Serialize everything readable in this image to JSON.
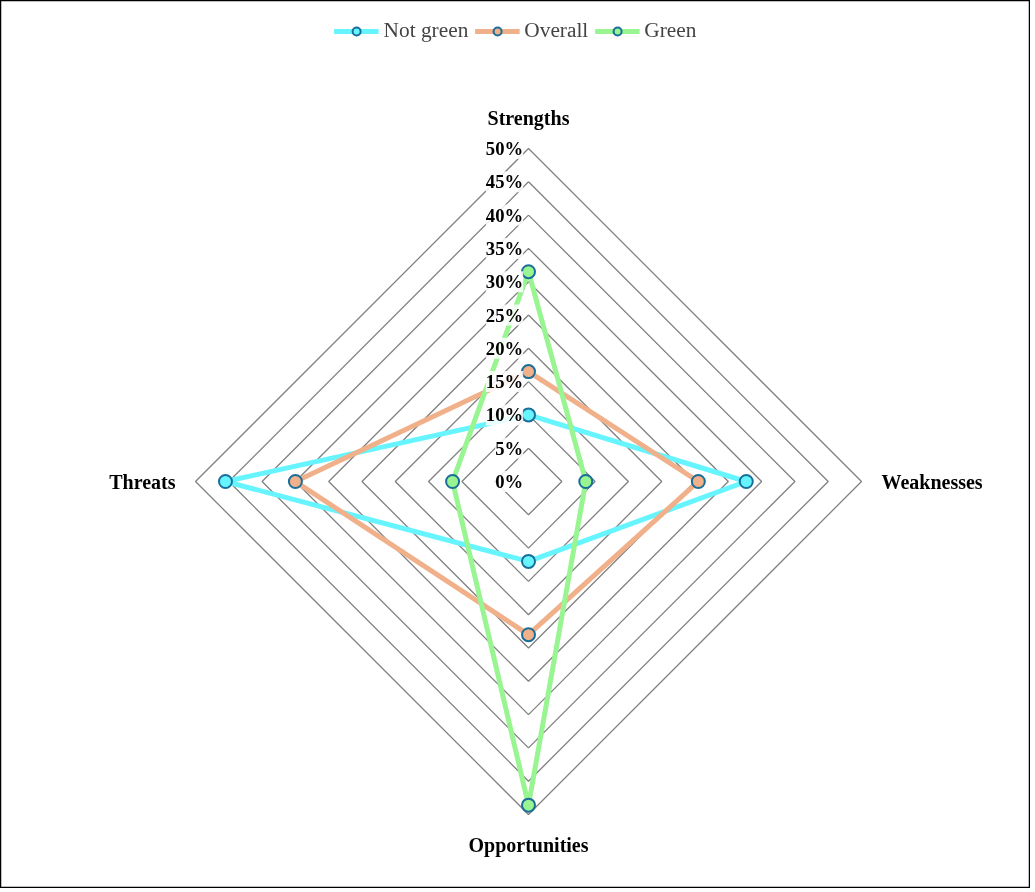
{
  "chart_data": {
    "type": "radar",
    "categories": [
      "Strengths",
      "Weaknesses",
      "Opportunities",
      "Threats"
    ],
    "series": [
      {
        "name": "Not green",
        "color": "#66f5ff",
        "values": [
          10,
          32.7,
          12,
          45.5
        ]
      },
      {
        "name": "Overall",
        "color": "#f0b08a",
        "values": [
          16.5,
          25.5,
          23,
          35
        ]
      },
      {
        "name": "Green",
        "color": "#99f591",
        "values": [
          31.5,
          8.6,
          48.6,
          11.4
        ]
      }
    ],
    "ylim": [
      0,
      50
    ],
    "yticks": [
      {
        "value": 0,
        "label": "0%"
      },
      {
        "value": 5,
        "label": "5%"
      },
      {
        "value": 10,
        "label": "10%"
      },
      {
        "value": 15,
        "label": "15%"
      },
      {
        "value": 20,
        "label": "20%"
      },
      {
        "value": 25,
        "label": "25%"
      },
      {
        "value": 30,
        "label": "30%"
      },
      {
        "value": 35,
        "label": "35%"
      },
      {
        "value": 40,
        "label": "40%"
      },
      {
        "value": 45,
        "label": "45%"
      },
      {
        "value": 50,
        "label": "50%"
      }
    ],
    "legend": "top",
    "marker": "circle",
    "grid": true
  }
}
